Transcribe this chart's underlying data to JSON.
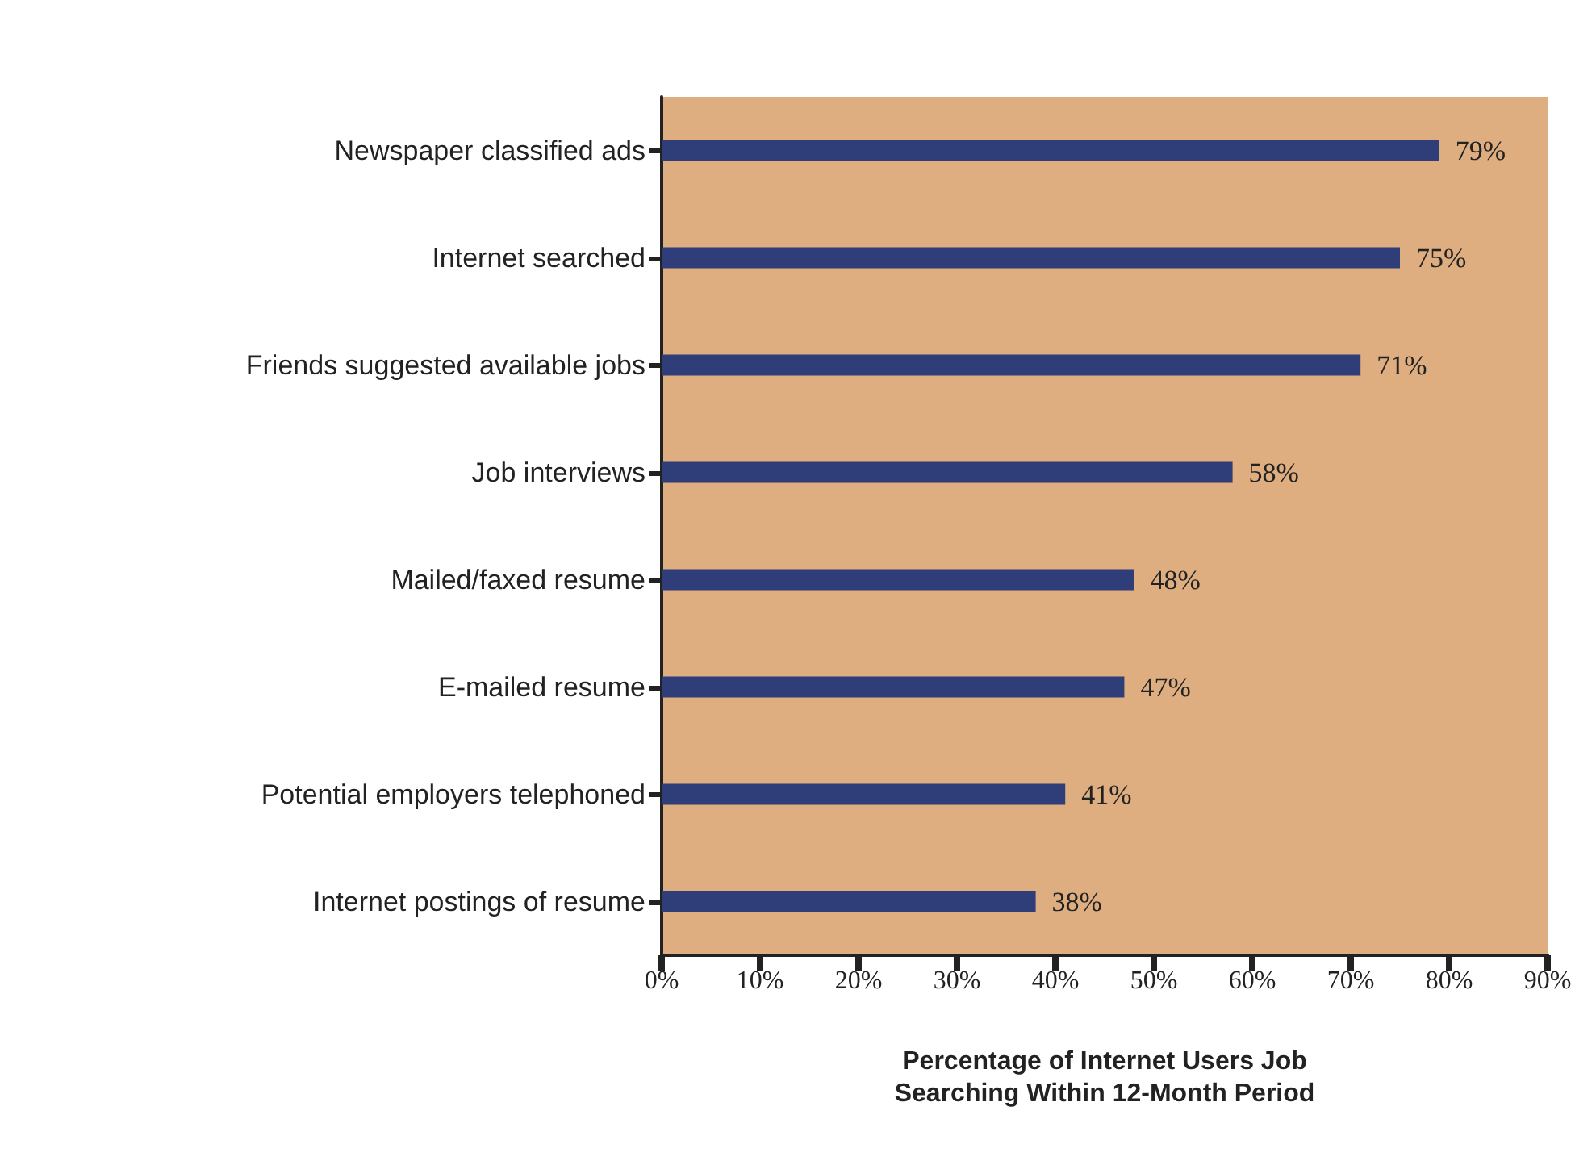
{
  "chart_data": {
    "type": "bar",
    "orientation": "horizontal",
    "categories": [
      "Newspaper classified ads",
      "Internet searched",
      "Friends suggested available jobs",
      "Job interviews",
      "Mailed/faxed resume",
      "E-mailed resume",
      "Potential employers telephoned",
      "Internet postings of resume"
    ],
    "values": [
      79,
      75,
      71,
      58,
      48,
      47,
      41,
      38
    ],
    "value_labels": [
      "79%",
      "75%",
      "71%",
      "58%",
      "48%",
      "47%",
      "41%",
      "38%"
    ],
    "color": "#2f3d78",
    "xlabel": "Percentage of Internet Users Job Searching Within 12-Month Period",
    "xlim": [
      0,
      90
    ],
    "xticks": [
      {
        "value": 0,
        "label": "0%"
      },
      {
        "value": 10,
        "label": "10%"
      },
      {
        "value": 20,
        "label": "20%"
      },
      {
        "value": 30,
        "label": "30%"
      },
      {
        "value": 40,
        "label": "40%"
      },
      {
        "value": 50,
        "label": "50%"
      },
      {
        "value": 60,
        "label": "60%"
      },
      {
        "value": 70,
        "label": "70%"
      },
      {
        "value": 80,
        "label": "80%"
      },
      {
        "value": 90,
        "label": "90%"
      }
    ],
    "grid": false
  }
}
